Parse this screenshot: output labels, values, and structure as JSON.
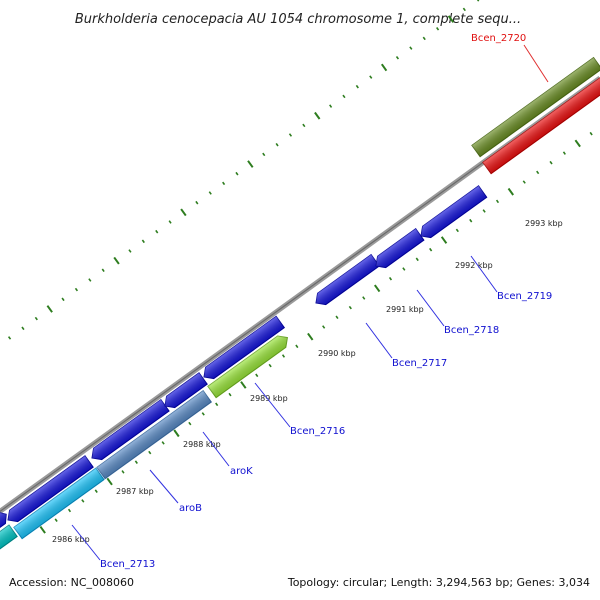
{
  "title": "Burkholderia cenocepacia AU 1054 chromosome 1, complete sequ...",
  "accession_text": "Accession: NC_008060",
  "summary_text": "Topology: circular; Length: 3,294,563 bp; Genes: 3,034",
  "colors": {
    "backbone": "#8a8a8a",
    "tick": "#2e7d1f",
    "label_blue": "#1010d0",
    "label_red": "#e01010",
    "leader_blue": "#3030e0",
    "leader_red": "#e03030"
  },
  "kbp_ticks": [
    "2986 kbp",
    "2987 kbp",
    "2988 kbp",
    "2989 kbp",
    "2990 kbp",
    "2991 kbp",
    "2992 kbp",
    "2993 kbp"
  ],
  "gene_labels": {
    "bcen_2713": "Bcen_2713",
    "arob": "aroB",
    "arok": "aroK",
    "bcen_2716": "Bcen_2716",
    "bcen_2717": "Bcen_2717",
    "bcen_2718": "Bcen_2718",
    "bcen_2719": "Bcen_2719",
    "bcen_2720": "Bcen_2720"
  },
  "features": [
    {
      "name": "gene-inner-blue-1",
      "fill": "#1515e0",
      "stroke": "#0000a0"
    },
    {
      "name": "gene-inner-blue-2",
      "fill": "#1515e0",
      "stroke": "#0000a0"
    },
    {
      "name": "gene-inner-blue-3",
      "fill": "#1515e0",
      "stroke": "#0000a0"
    },
    {
      "name": "gene-inner-blue-4",
      "fill": "#1515e0",
      "stroke": "#0000a0"
    },
    {
      "name": "gene-inner-blue-5",
      "fill": "#1515e0",
      "stroke": "#0000a0"
    },
    {
      "name": "gene-inner-blue-6",
      "fill": "#1515e0",
      "stroke": "#0000a0"
    },
    {
      "name": "gene-inner-blue-7",
      "fill": "#1515e0",
      "stroke": "#0000a0"
    },
    {
      "name": "gene-inner-blue-8",
      "fill": "#1515e0",
      "stroke": "#0000a0"
    },
    {
      "name": "gene-outer-teal",
      "fill": "#00c8c8",
      "stroke": "#008a8a"
    },
    {
      "name": "gene-outer-cyan",
      "fill": "#1ec8ff",
      "stroke": "#0a8ac0"
    },
    {
      "name": "gene-outer-steelblue",
      "fill": "#5a8cc8",
      "stroke": "#3a6aa0"
    },
    {
      "name": "gene-outer-lime",
      "fill": "#9be83a",
      "stroke": "#6aa820"
    },
    {
      "name": "gene-outer-olive",
      "fill": "#6b8f23",
      "stroke": "#4a6a14"
    },
    {
      "name": "gene-outer-red",
      "fill": "#f01010",
      "stroke": "#b00000"
    }
  ]
}
